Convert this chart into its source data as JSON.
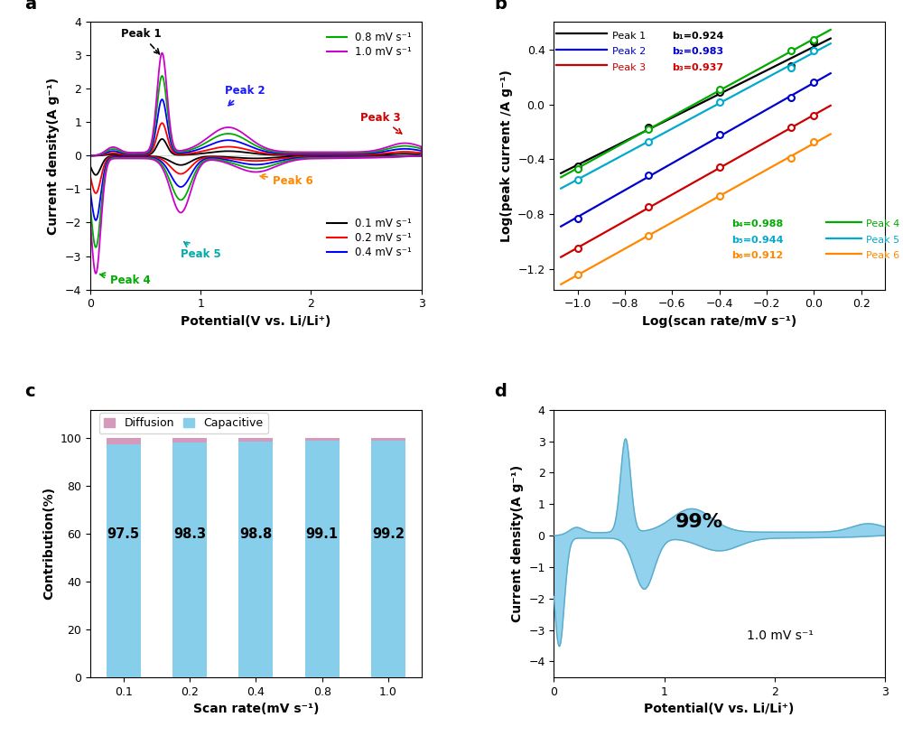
{
  "panel_a": {
    "xlabel": "Potential(V vs. Li/Li⁺)",
    "ylabel": "Current density(A g⁻¹)",
    "xlim": [
      0,
      3.0
    ],
    "ylim": [
      -4.0,
      4.0
    ],
    "yticks": [
      -4.0,
      -3.0,
      -2.0,
      -1.0,
      0.0,
      1.0,
      2.0,
      3.0,
      4.0
    ],
    "xticks": [
      0,
      1.0,
      2.0,
      3.0
    ],
    "colors": [
      "#000000",
      "#ff0000",
      "#0000ff",
      "#00aa00",
      "#cc00cc"
    ],
    "labels": [
      "0.1 mV s⁻¹",
      "0.2 mV s⁻¹",
      "0.4 mV s⁻¹",
      "0.8 mV s⁻¹",
      "1.0 mV s⁻¹"
    ],
    "scales": [
      0.22,
      0.43,
      0.74,
      1.05,
      1.35
    ]
  },
  "panel_b": {
    "xlabel": "Log(scan rate/mV s⁻¹)",
    "ylabel": "Log(peak current /A g⁻¹)",
    "xlim": [
      -1.1,
      0.3
    ],
    "ylim": [
      -1.35,
      0.6
    ],
    "xticks": [
      -1.0,
      -0.8,
      -0.6,
      -0.4,
      -0.2,
      0.0,
      0.2
    ],
    "yticks": [
      -1.2,
      -0.8,
      -0.4,
      0.0,
      0.4
    ],
    "log_x": [
      -1.0,
      -0.699,
      -0.398,
      -0.097,
      0.0
    ],
    "peaks": {
      "Peak 1": {
        "color": "#000000",
        "points": [
          -0.45,
          -0.17,
          0.09,
          0.28,
          0.46
        ]
      },
      "Peak 2": {
        "color": "#0000cd",
        "points": [
          -0.83,
          -0.52,
          -0.22,
          0.05,
          0.16
        ]
      },
      "Peak 3": {
        "color": "#cc0000",
        "points": [
          -1.05,
          -0.75,
          -0.46,
          -0.17,
          -0.08
        ]
      },
      "Peak 4": {
        "color": "#00aa00",
        "points": [
          -0.47,
          -0.18,
          0.11,
          0.39,
          0.47
        ]
      },
      "Peak 5": {
        "color": "#00aacc",
        "points": [
          -0.55,
          -0.27,
          0.02,
          0.27,
          0.39
        ]
      },
      "Peak 6": {
        "color": "#ff8800",
        "points": [
          -1.24,
          -0.96,
          -0.67,
          -0.39,
          -0.27
        ]
      }
    },
    "b_values": {
      "Peak 1": 0.924,
      "Peak 2": 0.983,
      "Peak 3": 0.937,
      "Peak 4": 0.988,
      "Peak 5": 0.944,
      "Peak 6": 0.912
    }
  },
  "panel_c": {
    "xlabel": "Scan rate(mV s⁻¹)",
    "ylabel": "Contribution(%)",
    "categories": [
      "0.1",
      "0.2",
      "0.4",
      "0.8",
      "1.0"
    ],
    "capacitive": [
      97.5,
      98.3,
      98.8,
      99.1,
      99.2
    ],
    "color_cap": "#87ceeb",
    "color_diff": "#d499bb",
    "yticks": [
      0,
      20,
      40,
      60,
      80,
      100
    ]
  },
  "panel_d": {
    "xlabel": "Potential(V vs. Li/Li⁺)",
    "ylabel": "Current density(A g⁻¹)",
    "xlim": [
      0,
      3.0
    ],
    "ylim": [
      -4.5,
      4.0
    ],
    "yticks": [
      -4.0,
      -3.0,
      -2.0,
      -1.0,
      0.0,
      1.0,
      2.0,
      3.0,
      4.0
    ],
    "xticks": [
      0,
      1.0,
      2.0,
      3.0
    ],
    "fill_color": "#87ceeb",
    "annotation": "99%",
    "scan_label": "1.0 mV s⁻¹",
    "scale": 1.35
  }
}
